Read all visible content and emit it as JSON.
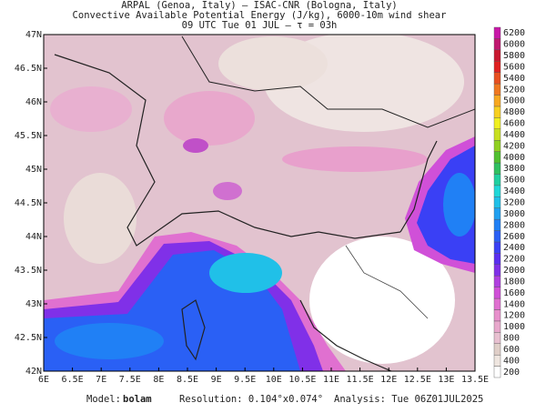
{
  "header": {
    "lines": [
      "ARPAL (Genoa, Italy)  —  ISAC-CNR (Bologna, Italy)",
      "Convective Available Potential Energy (J/kg), 6000-10m wind shear",
      "09 UTC Tue 01 JUL  —  τ = 03h"
    ]
  },
  "axes": {
    "lon_labels": [
      "6E",
      "6.5E",
      "7E",
      "7.5E",
      "8E",
      "8.5E",
      "9E",
      "9.5E",
      "10E",
      "10.5E",
      "11E",
      "11.5E",
      "12E",
      "12.5E",
      "13E",
      "13.5E"
    ],
    "lat_labels": [
      "42N",
      "42.5N",
      "43N",
      "43.5N",
      "44N",
      "44.5N",
      "45N",
      "45.5N",
      "46N",
      "46.5N",
      "47N"
    ]
  },
  "colorbar": {
    "levels": [
      200,
      400,
      600,
      800,
      1000,
      1200,
      1400,
      1600,
      1800,
      2000,
      2200,
      2400,
      2600,
      2800,
      3000,
      3200,
      3400,
      3600,
      3800,
      4000,
      4200,
      4400,
      4600,
      4800,
      5000,
      5200,
      5400,
      5600,
      5800,
      6000,
      6200
    ],
    "colors": [
      "#ffffff",
      "#efe6e0",
      "#e0cfc8",
      "#e8c0d0",
      "#e8a8cc",
      "#e890cc",
      "#e070d0",
      "#d050d8",
      "#b040e0",
      "#8030e8",
      "#5a2ef0",
      "#3a40f5",
      "#2a60f5",
      "#2080f5",
      "#20a0f0",
      "#20c0e8",
      "#20d8d8",
      "#20d0a0",
      "#30c060",
      "#50c030",
      "#90d020",
      "#c8e020",
      "#f0f020",
      "#f8d020",
      "#f8a820",
      "#f07820",
      "#e85020",
      "#e02020",
      "#c81830",
      "#c01870",
      "#c818a8"
    ]
  },
  "footer": {
    "model_label": "Model:",
    "model": "bolam",
    "resolution": "Resolution: 0.104°x0.074°",
    "analysis": "Analysis: Tue 06Z01JUL2025"
  }
}
